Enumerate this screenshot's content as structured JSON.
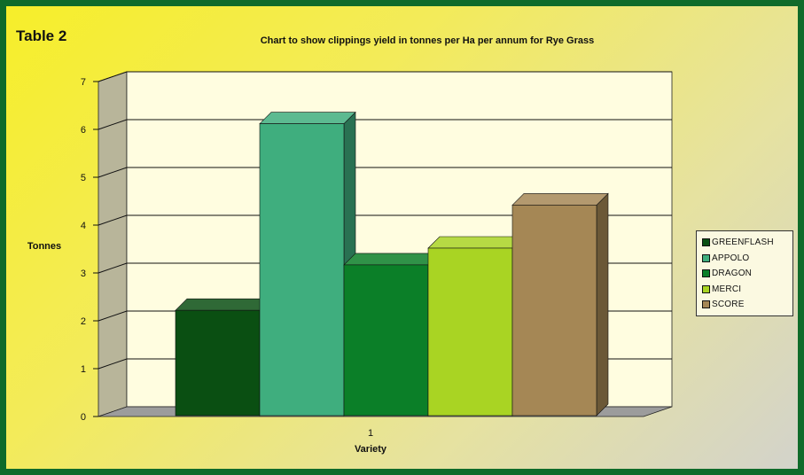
{
  "table_label": "Table 2",
  "chart_data": {
    "type": "bar",
    "title": "Chart to show clippings yield in tonnes per Ha per annum for Rye Grass",
    "xlabel": "Variety",
    "ylabel": "Tonnes",
    "categories": [
      "1"
    ],
    "ylim": [
      0,
      7
    ],
    "yticks": [
      0,
      1,
      2,
      3,
      4,
      5,
      6,
      7
    ],
    "grid": true,
    "legend_position": "right",
    "style": "3d-clustered",
    "series": [
      {
        "name": "GREENFLASH",
        "values": [
          2.2
        ],
        "color": "#0a4f12"
      },
      {
        "name": "APPOLO",
        "values": [
          6.1
        ],
        "color": "#3fae7e"
      },
      {
        "name": "DRAGON",
        "values": [
          3.15
        ],
        "color": "#0b7f28"
      },
      {
        "name": "MERCI",
        "values": [
          3.5
        ],
        "color": "#a9d423"
      },
      {
        "name": "SCORE",
        "values": [
          4.4
        ],
        "color": "#a58755"
      }
    ]
  },
  "colors": {
    "frame": "#0f6b2a",
    "plot_back": "#fffde0",
    "plot_side": "#b8b59a",
    "floor": "#9c9c9c"
  }
}
